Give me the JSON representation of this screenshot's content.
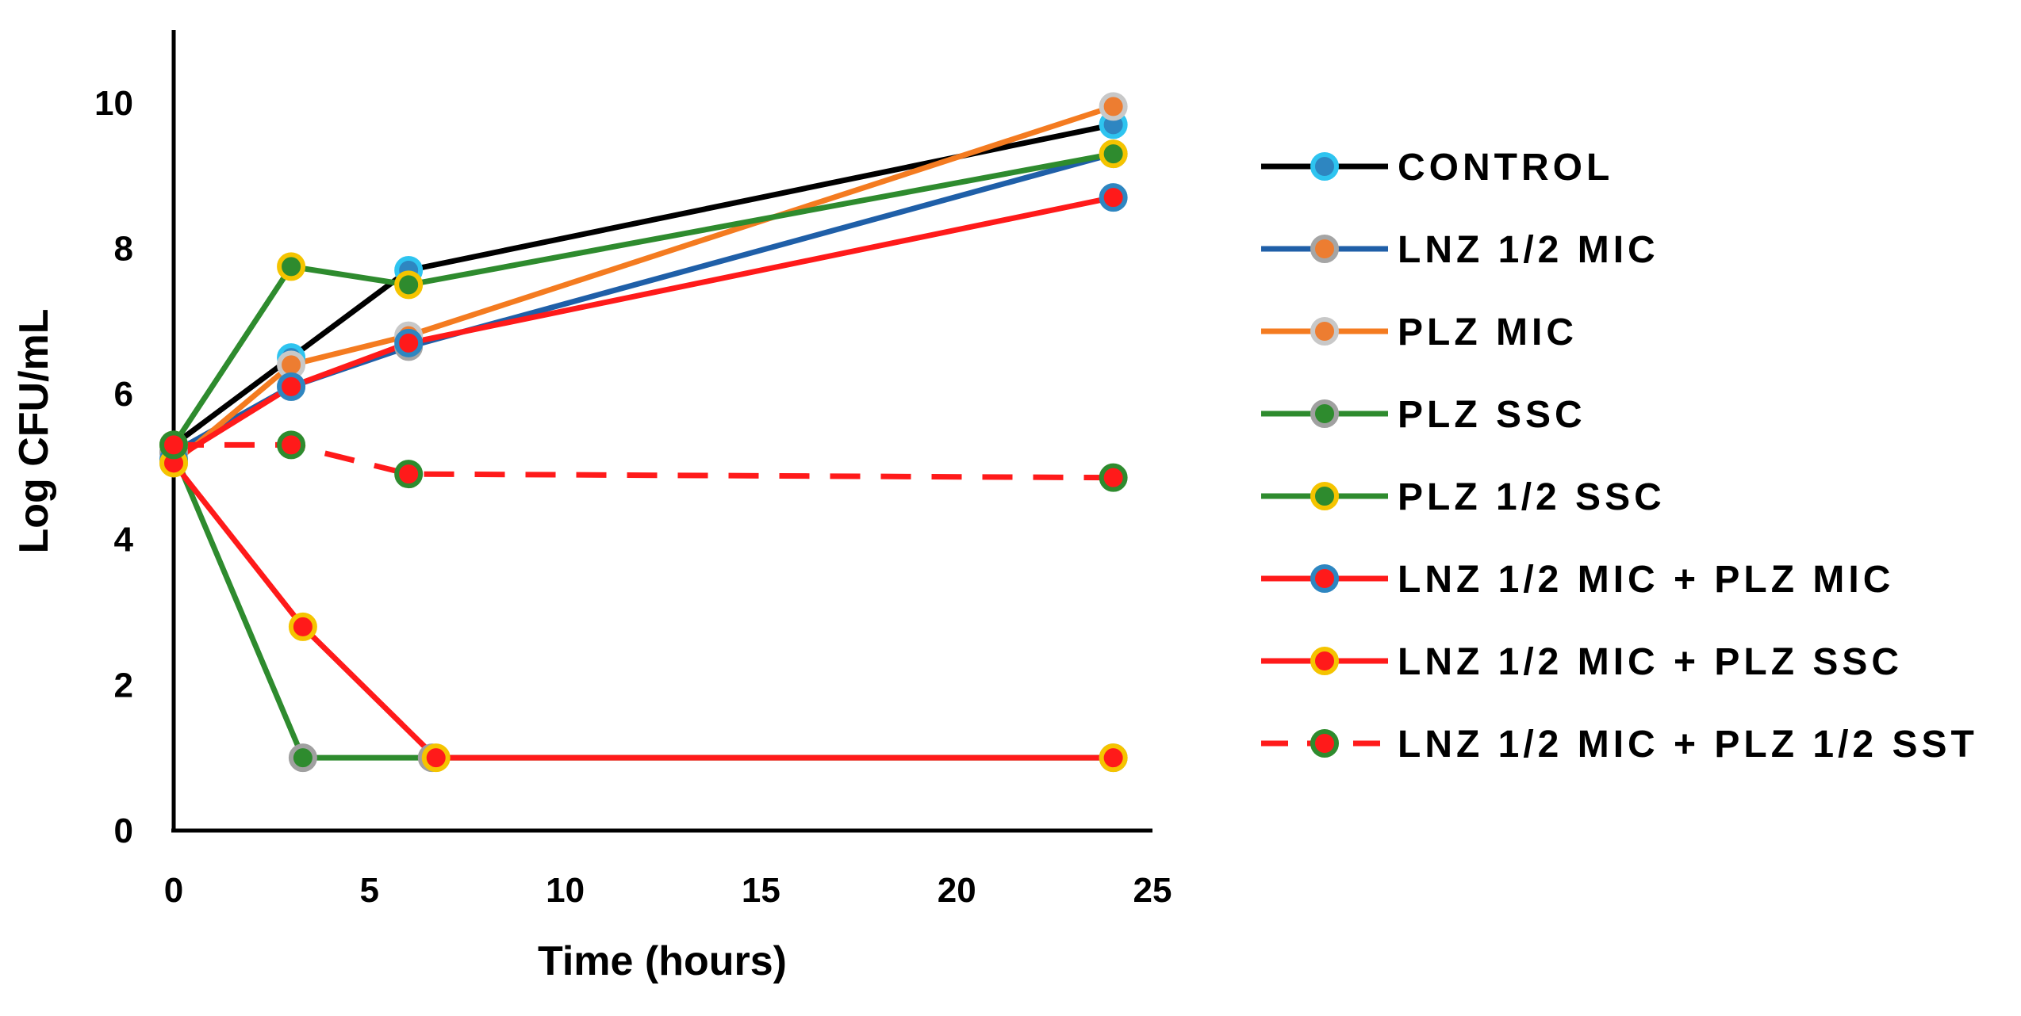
{
  "chart_data": {
    "type": "line",
    "title": "",
    "xlabel": "Time (hours)",
    "ylabel": "Log CFU/mL",
    "xlim": [
      0,
      25
    ],
    "ylim": [
      0,
      11
    ],
    "xticks": [
      0,
      5,
      10,
      15,
      20,
      25
    ],
    "yticks": [
      0,
      2,
      4,
      6,
      8,
      10
    ],
    "grid": false,
    "legend_position": "right",
    "series": [
      {
        "name": "CONTROL",
        "line_color": "#000000",
        "marker_fill": "#2e86c1",
        "marker_edge": "#2ec4f0",
        "dashed": false,
        "x": [
          0,
          3,
          6,
          24
        ],
        "y": [
          5.3,
          6.5,
          7.7,
          9.7
        ]
      },
      {
        "name": "LNZ 1/2 MIC",
        "line_color": "#1f5fa8",
        "marker_fill": "#ed7d31",
        "marker_edge": "#a5a5a5",
        "dashed": false,
        "x": [
          0,
          3,
          6,
          24
        ],
        "y": [
          5.2,
          6.1,
          6.65,
          9.3
        ]
      },
      {
        "name": "PLZ MIC",
        "line_color": "#f47b20",
        "marker_fill": "#ed7d31",
        "marker_edge": "#c8c8c8",
        "dashed": false,
        "x": [
          0,
          3,
          6,
          24
        ],
        "y": [
          5.05,
          6.4,
          6.8,
          9.95
        ]
      },
      {
        "name": "PLZ SSC",
        "line_color": "#2e8b2e",
        "marker_fill": "#2e8b2e",
        "marker_edge": "#a0a0a0",
        "dashed": false,
        "x": [
          0,
          3.3,
          6.6,
          24
        ],
        "y": [
          5.2,
          1.0,
          1.0,
          1.0
        ]
      },
      {
        "name": "PLZ 1/2 SSC",
        "line_color": "#2e8b2e",
        "marker_fill": "#2e8b2e",
        "marker_edge": "#f5c400",
        "dashed": false,
        "x": [
          0,
          3,
          6,
          24
        ],
        "y": [
          5.3,
          7.75,
          7.5,
          9.3
        ]
      },
      {
        "name": "LNZ 1/2 MIC + PLZ MIC",
        "line_color": "#ff1a1a",
        "marker_fill": "#ff1a1a",
        "marker_edge": "#2e86c1",
        "dashed": false,
        "x": [
          0,
          3,
          6,
          24
        ],
        "y": [
          5.1,
          6.1,
          6.7,
          8.7
        ]
      },
      {
        "name": "LNZ 1/2 MIC + PLZ SSC",
        "line_color": "#ff1a1a",
        "marker_fill": "#ff1a1a",
        "marker_edge": "#f5c400",
        "dashed": false,
        "x": [
          0,
          3.3,
          6.7,
          24
        ],
        "y": [
          5.05,
          2.8,
          1.0,
          1.0
        ]
      },
      {
        "name": "LNZ 1/2 MIC + PLZ 1/2 SST",
        "line_color": "#ff1a1a",
        "marker_fill": "#ff1a1a",
        "marker_edge": "#2e8b2e",
        "dashed": true,
        "x": [
          0,
          3,
          6,
          24
        ],
        "y": [
          5.3,
          5.3,
          4.9,
          4.85
        ]
      }
    ]
  }
}
